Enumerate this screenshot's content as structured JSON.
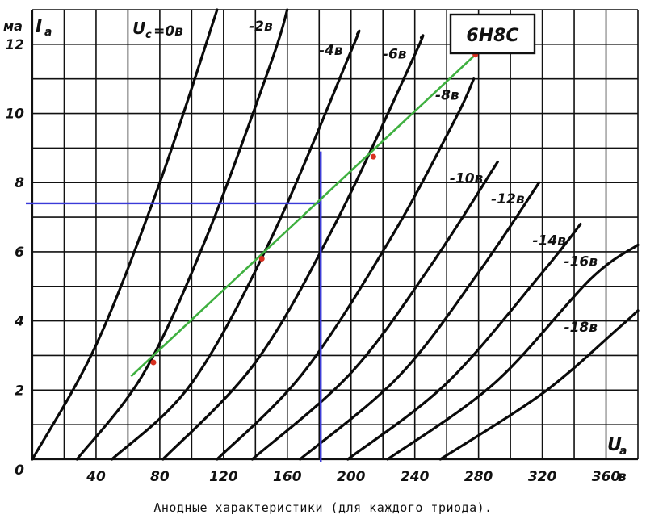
{
  "chart_data": {
    "type": "line",
    "title": "6Н8С",
    "caption": "Анодные характеристики (для каждого триода).",
    "y_unit": "ма",
    "y_symbol": "I",
    "y_symbol_sub": "a",
    "x_symbol": "U",
    "x_symbol_sub": "a",
    "x_unit": "в",
    "xlim": [
      0,
      380
    ],
    "ylim": [
      0,
      13
    ],
    "x_ticks": [
      "0",
      "40",
      "80",
      "120",
      "160",
      "200",
      "240",
      "280",
      "320",
      "360"
    ],
    "y_ticks": [
      "2",
      "4",
      "6",
      "8",
      "10",
      "12"
    ],
    "x_tick_values": [
      0,
      40,
      80,
      120,
      160,
      200,
      240,
      280,
      320,
      360
    ],
    "y_tick_values": [
      2,
      4,
      6,
      8,
      10,
      12
    ],
    "grid": true,
    "series_legend_symbol": "U",
    "series_legend_sub": "c",
    "series": [
      {
        "name": "=0в",
        "points": [
          [
            0,
            0
          ],
          [
            40,
            3.3
          ],
          [
            80,
            8.0
          ],
          [
            116,
            13.0
          ]
        ]
      },
      {
        "name": "-2в",
        "points": [
          [
            28,
            0
          ],
          [
            70,
            2.5
          ],
          [
            110,
            6.5
          ],
          [
            150,
            11.5
          ],
          [
            160,
            13.0
          ]
        ]
      },
      {
        "name": "-4в",
        "points": [
          [
            50,
            0
          ],
          [
            100,
            2.2
          ],
          [
            150,
            6.4
          ],
          [
            200,
            11.8
          ],
          [
            204,
            12.3
          ]
        ]
      },
      {
        "name": "-6в",
        "points": [
          [
            82,
            0
          ],
          [
            140,
            2.8
          ],
          [
            190,
            6.8
          ],
          [
            240,
            11.7
          ],
          [
            244,
            12.2
          ]
        ]
      },
      {
        "name": "-8в",
        "points": [
          [
            116,
            0
          ],
          [
            170,
            2.5
          ],
          [
            225,
            6.4
          ],
          [
            265,
            9.8
          ],
          [
            277,
            11.0
          ]
        ]
      },
      {
        "name": "-10в",
        "points": [
          [
            138,
            0
          ],
          [
            200,
            2.5
          ],
          [
            250,
            5.6
          ],
          [
            292,
            8.6
          ]
        ]
      },
      {
        "name": "-12в",
        "points": [
          [
            168,
            0
          ],
          [
            230,
            2.4
          ],
          [
            280,
            5.4
          ],
          [
            318,
            8.0
          ]
        ]
      },
      {
        "name": "-14в",
        "points": [
          [
            198,
            0
          ],
          [
            260,
            2.2
          ],
          [
            320,
            5.4
          ],
          [
            344,
            6.8
          ]
        ]
      },
      {
        "name": "-16в",
        "points": [
          [
            223,
            0
          ],
          [
            290,
            2.2
          ],
          [
            350,
            5.2
          ],
          [
            380,
            6.2
          ]
        ]
      },
      {
        "name": "-18в",
        "points": [
          [
            256,
            0
          ],
          [
            320,
            1.9
          ],
          [
            368,
            3.8
          ],
          [
            380,
            4.3
          ]
        ]
      }
    ],
    "load_line": {
      "points": [
        [
          62,
          2.4
        ],
        [
          278,
          11.7
        ]
      ]
    },
    "operating_points": [
      [
        76,
        2.8
      ],
      [
        144,
        5.8
      ],
      [
        214,
        8.75
      ],
      [
        278,
        11.7
      ]
    ],
    "reference_lines": {
      "x": 181,
      "y": 7.4
    }
  },
  "colors": {
    "load_line": "#3fb040",
    "reference": "#3a3ad8",
    "points": "#d83020",
    "ink": "#111111"
  }
}
